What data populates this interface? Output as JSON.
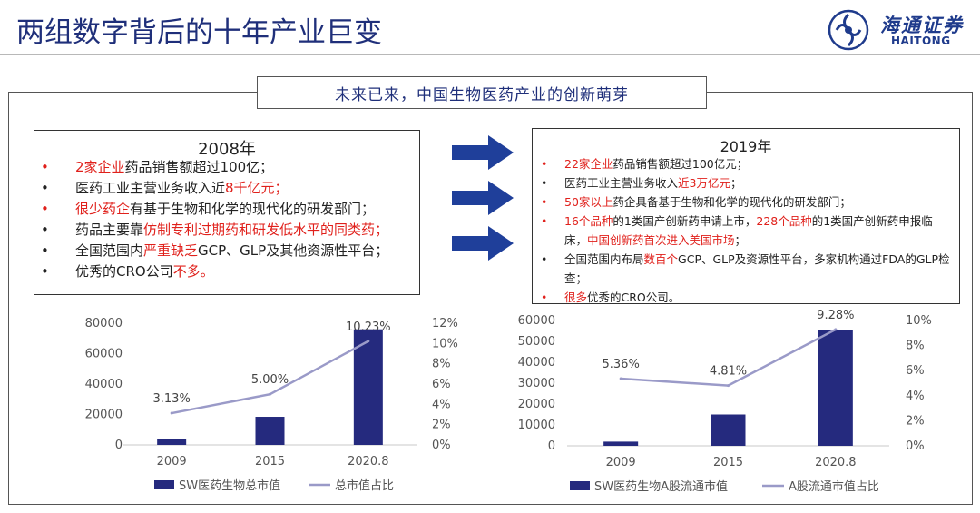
{
  "header": {
    "title": "两组数字背后的十年产业巨变",
    "logo_cn": "海通证券",
    "logo_en": "HAITONG",
    "subtitle": "未来已来，中国生物医药产业的创新萌芽"
  },
  "colors": {
    "bar": "#252a7e",
    "line": "#9a9ac8",
    "red": "#e0201b",
    "title": "#1f2f7a",
    "arrow": "#1f3f9a"
  },
  "icons": [
    "haitong-logo-icon",
    "arrow-right-icon"
  ],
  "box2008": {
    "title": "2008年",
    "items": [
      {
        "dot_red": true,
        "parts": [
          {
            "t": "2家企业",
            "red": true
          },
          {
            "t": "药品销售额超过100亿；"
          }
        ]
      },
      {
        "dot_red": false,
        "parts": [
          {
            "t": "医药工业主营业务收入近"
          },
          {
            "t": "8千亿元；",
            "red": true
          }
        ]
      },
      {
        "dot_red": true,
        "parts": [
          {
            "t": "很少药企",
            "red": true
          },
          {
            "t": "有基于生物和化学的现代化的研发部门；"
          }
        ]
      },
      {
        "dot_red": false,
        "parts": [
          {
            "t": "药品主要靠"
          },
          {
            "t": "仿制专利过期药和研发低水平的同类药；",
            "red": true
          }
        ]
      },
      {
        "dot_red": false,
        "parts": [
          {
            "t": "全国范围内"
          },
          {
            "t": "严重缺乏",
            "red": true
          },
          {
            "t": "GCP、GLP及其他资源性平台；"
          }
        ]
      },
      {
        "dot_red": false,
        "parts": [
          {
            "t": "优秀的CRO公司"
          },
          {
            "t": "不多。",
            "red": true
          }
        ]
      }
    ]
  },
  "box2019": {
    "title": "2019年",
    "items": [
      {
        "dot_red": true,
        "parts": [
          {
            "t": "22家企业",
            "red": true
          },
          {
            "t": "药品销售额超过100亿元；"
          }
        ]
      },
      {
        "dot_red": false,
        "parts": [
          {
            "t": "医药工业主营业务收入"
          },
          {
            "t": "近3万亿元",
            "red": true
          },
          {
            "t": "；"
          }
        ]
      },
      {
        "dot_red": true,
        "parts": [
          {
            "t": "50家以上",
            "red": true
          },
          {
            "t": "药企具备基于生物和化学的现代化的研发部门；"
          }
        ]
      },
      {
        "dot_red": true,
        "parts": [
          {
            "t": "16个品种",
            "red": true
          },
          {
            "t": "的1类国产创新药申请上市，"
          },
          {
            "t": "228个品种",
            "red": true
          },
          {
            "t": "的1类国产创新药申报临床，"
          },
          {
            "t": "中国创新药首次进入美国市场",
            "red": true
          },
          {
            "t": "；"
          }
        ]
      },
      {
        "dot_red": false,
        "parts": [
          {
            "t": "全国范围内布局"
          },
          {
            "t": "数百个",
            "red": true
          },
          {
            "t": "GCP、GLP及资源性平台，多家机构通过FDA的GLP检查；"
          }
        ]
      },
      {
        "dot_red": true,
        "parts": [
          {
            "t": "很多",
            "red": true
          },
          {
            "t": "优秀的CRO公司。"
          }
        ]
      }
    ]
  },
  "chart_data": [
    {
      "type": "bar",
      "categories": [
        "2009",
        "2015",
        "2020.8"
      ],
      "series": [
        {
          "name": "SW医药生物总市值",
          "type": "bar",
          "axis": "left",
          "values": [
            4000,
            18500,
            76000
          ]
        },
        {
          "name": "总市值占比",
          "type": "line",
          "axis": "right",
          "values": [
            3.13,
            5.0,
            10.23
          ],
          "labels": [
            "3.13%",
            "5.00%",
            "10.23%"
          ]
        }
      ],
      "ylim_left": [
        0,
        80000
      ],
      "yticks_left": [
        "0",
        "20000",
        "40000",
        "60000",
        "80000"
      ],
      "ylim_right": [
        0,
        12
      ],
      "yticks_right": [
        "0%",
        "2%",
        "4%",
        "6%",
        "8%",
        "10%",
        "12%"
      ],
      "legend_position": "bottom"
    },
    {
      "type": "bar",
      "categories": [
        "2009",
        "2015",
        "2020.8"
      ],
      "series": [
        {
          "name": "SW医药生物A股流通市值",
          "type": "bar",
          "axis": "left",
          "values": [
            2000,
            15000,
            55500
          ]
        },
        {
          "name": "A股流通市值占比",
          "type": "line",
          "axis": "right",
          "values": [
            5.36,
            4.81,
            9.28
          ],
          "labels": [
            "5.36%",
            "4.81%",
            "9.28%"
          ]
        }
      ],
      "ylim_left": [
        0,
        60000
      ],
      "yticks_left": [
        "0",
        "10000",
        "20000",
        "30000",
        "40000",
        "50000",
        "60000"
      ],
      "ylim_right": [
        0,
        10
      ],
      "yticks_right": [
        "0%",
        "2%",
        "4%",
        "6%",
        "8%",
        "10%"
      ],
      "legend_position": "bottom"
    }
  ]
}
